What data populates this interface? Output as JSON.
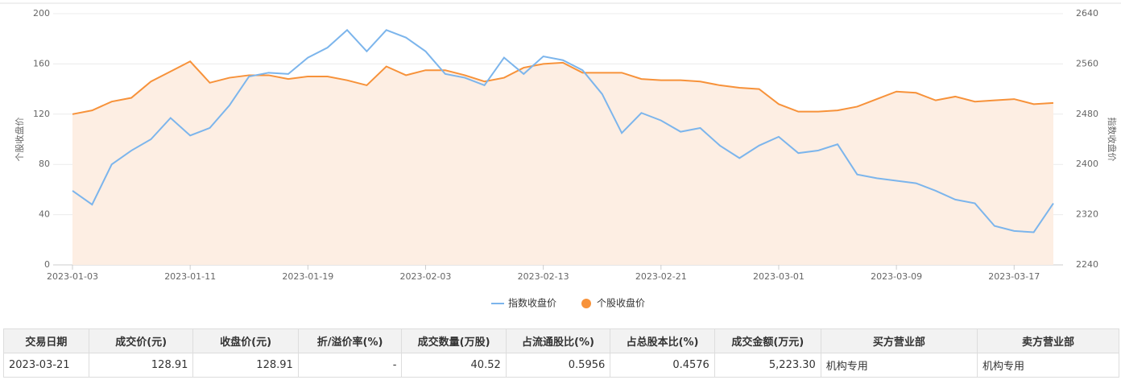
{
  "chart_data": {
    "type": "line",
    "y_label": "个股收盘价",
    "y2_label": "指数收盘价",
    "categories": [
      "2023-01-03",
      null,
      null,
      null,
      null,
      null,
      "2023-01-11",
      null,
      null,
      null,
      null,
      null,
      "2023-01-19",
      null,
      null,
      null,
      null,
      null,
      "2023-02-03",
      null,
      null,
      null,
      null,
      null,
      "2023-02-13",
      null,
      null,
      null,
      null,
      null,
      "2023-02-21",
      null,
      null,
      null,
      null,
      null,
      "2023-03-01",
      null,
      null,
      null,
      null,
      null,
      "2023-03-09",
      null,
      null,
      null,
      null,
      null,
      "2023-03-17",
      null,
      null
    ],
    "ylim": [
      0,
      200
    ],
    "yticks": [
      0,
      40,
      80,
      120,
      160,
      200
    ],
    "y2lim": [
      2240,
      2640
    ],
    "y2ticks": [
      2240,
      2320,
      2400,
      2480,
      2560,
      2640
    ],
    "grid": true,
    "legend": "bottom",
    "series": [
      {
        "name": "指数收盘价",
        "color": "#7cb5ec",
        "axis": "y2",
        "values": [
          2358,
          2336,
          2400,
          2422,
          2440,
          2474,
          2446,
          2458,
          2494,
          2540,
          2546,
          2544,
          2570,
          2586,
          2614,
          2580,
          2614,
          2602,
          2580,
          2544,
          2538,
          2526,
          2570,
          2544,
          2572,
          2566,
          2550,
          2512,
          2450,
          2482,
          2470,
          2452,
          2458,
          2430,
          2410,
          2430,
          2444,
          2418,
          2422,
          2432,
          2384,
          2378,
          2374,
          2370,
          2358,
          2344,
          2338,
          2302,
          2294,
          2292,
          2338
        ]
      },
      {
        "name": "个股收盘价",
        "color": "#f7923a",
        "area_color": "#fdeee3",
        "values": [
          120,
          123,
          130,
          133,
          146,
          154,
          162,
          145,
          149,
          151,
          151,
          148,
          150,
          150,
          147,
          143,
          158,
          151,
          155,
          155,
          151,
          146,
          149,
          157,
          160,
          161,
          153,
          153,
          153,
          148,
          147,
          147,
          146,
          143,
          141,
          140,
          128,
          122,
          122,
          123,
          126,
          132,
          138,
          137,
          131,
          134,
          130,
          131,
          132,
          128,
          128.91
        ]
      }
    ]
  },
  "table": {
    "headers": [
      "交易日期",
      "成交价(元)",
      "收盘价(元)",
      "折/溢价率(%)",
      "成交数量(万股)",
      "占流通股比(%)",
      "占总股本比(%)",
      "成交金额(万元)",
      "买方营业部",
      "卖方营业部"
    ],
    "rows": [
      [
        "2023-03-21",
        "128.91",
        "128.91",
        "-",
        "40.52",
        "0.5956",
        "0.4576",
        "5,223.30",
        "机构专用",
        "机构专用"
      ]
    ]
  }
}
